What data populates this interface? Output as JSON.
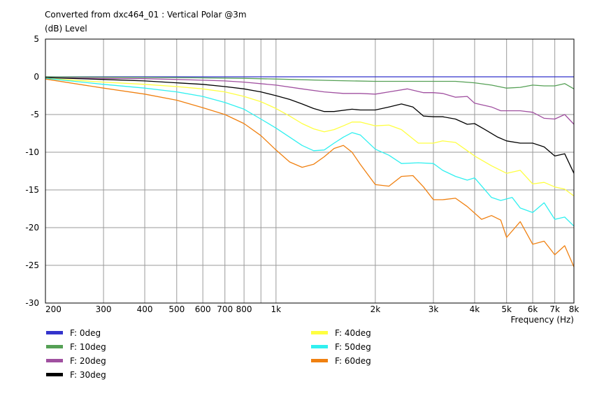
{
  "chart_data": {
    "type": "line",
    "title": "Converted from dxc464_01 : Vertical Polar @3m",
    "ylabel": "(dB)  Level",
    "xlabel": "Frequency  (Hz)",
    "x_scale": "log",
    "xlim": [
      200,
      8000
    ],
    "ylim": [
      -30,
      5
    ],
    "grid": true,
    "legend_position": "bottom",
    "x_ticks": [
      {
        "v": 200,
        "label": "200"
      },
      {
        "v": 300,
        "label": "300"
      },
      {
        "v": 400,
        "label": "400"
      },
      {
        "v": 500,
        "label": "500"
      },
      {
        "v": 600,
        "label": "600"
      },
      {
        "v": 700,
        "label": "700"
      },
      {
        "v": 800,
        "label": "800"
      },
      {
        "v": 1000,
        "label": "1k"
      },
      {
        "v": 2000,
        "label": "2k"
      },
      {
        "v": 3000,
        "label": "3k"
      },
      {
        "v": 4000,
        "label": "4k"
      },
      {
        "v": 5000,
        "label": "5k"
      },
      {
        "v": 6000,
        "label": "6k"
      },
      {
        "v": 7000,
        "label": "7k"
      },
      {
        "v": 8000,
        "label": "8k"
      }
    ],
    "x_minor": [
      900
    ],
    "y_ticks": [
      5,
      0,
      -5,
      -10,
      -15,
      -20,
      -25,
      -30
    ],
    "series": [
      {
        "name": "F: 0deg",
        "color": "#3333cc",
        "points": [
          [
            200,
            0
          ],
          [
            8000,
            0
          ]
        ]
      },
      {
        "name": "F: 10deg",
        "color": "#55a055",
        "points": [
          [
            200,
            0
          ],
          [
            300,
            -0.05
          ],
          [
            500,
            -0.1
          ],
          [
            800,
            -0.2
          ],
          [
            1000,
            -0.3
          ],
          [
            1500,
            -0.5
          ],
          [
            2000,
            -0.6
          ],
          [
            2500,
            -0.6
          ],
          [
            3000,
            -0.6
          ],
          [
            3500,
            -0.6
          ],
          [
            4000,
            -0.8
          ],
          [
            4500,
            -1.1
          ],
          [
            5000,
            -1.5
          ],
          [
            5500,
            -1.4
          ],
          [
            6000,
            -1.1
          ],
          [
            6500,
            -1.2
          ],
          [
            7000,
            -1.2
          ],
          [
            7500,
            -0.9
          ],
          [
            8000,
            -1.6
          ]
        ]
      },
      {
        "name": "F: 20deg",
        "color": "#a050a0",
        "points": [
          [
            200,
            -0.1
          ],
          [
            300,
            -0.2
          ],
          [
            400,
            -0.25
          ],
          [
            500,
            -0.35
          ],
          [
            600,
            -0.45
          ],
          [
            700,
            -0.55
          ],
          [
            800,
            -0.7
          ],
          [
            1000,
            -1.1
          ],
          [
            1200,
            -1.6
          ],
          [
            1400,
            -2.0
          ],
          [
            1600,
            -2.2
          ],
          [
            1800,
            -2.2
          ],
          [
            2000,
            -2.3
          ],
          [
            2200,
            -2.0
          ],
          [
            2500,
            -1.6
          ],
          [
            2800,
            -2.1
          ],
          [
            3000,
            -2.1
          ],
          [
            3200,
            -2.2
          ],
          [
            3500,
            -2.7
          ],
          [
            3800,
            -2.6
          ],
          [
            4000,
            -3.5
          ],
          [
            4500,
            -4.0
          ],
          [
            4800,
            -4.5
          ],
          [
            5500,
            -4.5
          ],
          [
            6000,
            -4.7
          ],
          [
            6500,
            -5.5
          ],
          [
            7000,
            -5.6
          ],
          [
            7500,
            -5.0
          ],
          [
            8000,
            -6.3
          ]
        ]
      },
      {
        "name": "F: 30deg",
        "color": "#000000",
        "points": [
          [
            200,
            -0.1
          ],
          [
            300,
            -0.35
          ],
          [
            400,
            -0.55
          ],
          [
            500,
            -0.8
          ],
          [
            600,
            -1.0
          ],
          [
            700,
            -1.3
          ],
          [
            800,
            -1.6
          ],
          [
            900,
            -2.0
          ],
          [
            1000,
            -2.5
          ],
          [
            1100,
            -3.0
          ],
          [
            1200,
            -3.6
          ],
          [
            1300,
            -4.2
          ],
          [
            1400,
            -4.6
          ],
          [
            1500,
            -4.6
          ],
          [
            1700,
            -4.3
          ],
          [
            1800,
            -4.4
          ],
          [
            2000,
            -4.4
          ],
          [
            2200,
            -4.0
          ],
          [
            2400,
            -3.6
          ],
          [
            2600,
            -4.0
          ],
          [
            2800,
            -5.2
          ],
          [
            3000,
            -5.3
          ],
          [
            3200,
            -5.3
          ],
          [
            3500,
            -5.6
          ],
          [
            3800,
            -6.3
          ],
          [
            4000,
            -6.2
          ],
          [
            4300,
            -7.0
          ],
          [
            4700,
            -8.0
          ],
          [
            5000,
            -8.5
          ],
          [
            5500,
            -8.8
          ],
          [
            6000,
            -8.8
          ],
          [
            6500,
            -9.3
          ],
          [
            7000,
            -10.5
          ],
          [
            7500,
            -10.2
          ],
          [
            8000,
            -12.8
          ]
        ]
      },
      {
        "name": "F: 40deg",
        "color": "#ffff40",
        "points": [
          [
            200,
            -0.2
          ],
          [
            300,
            -0.7
          ],
          [
            400,
            -1.0
          ],
          [
            500,
            -1.3
          ],
          [
            600,
            -1.6
          ],
          [
            700,
            -2.0
          ],
          [
            800,
            -2.6
          ],
          [
            900,
            -3.3
          ],
          [
            1000,
            -4.2
          ],
          [
            1100,
            -5.2
          ],
          [
            1200,
            -6.2
          ],
          [
            1300,
            -6.9
          ],
          [
            1400,
            -7.3
          ],
          [
            1500,
            -7.0
          ],
          [
            1600,
            -6.5
          ],
          [
            1700,
            -6.0
          ],
          [
            1800,
            -6.0
          ],
          [
            2000,
            -6.5
          ],
          [
            2200,
            -6.4
          ],
          [
            2400,
            -7.0
          ],
          [
            2700,
            -8.8
          ],
          [
            3000,
            -8.8
          ],
          [
            3200,
            -8.5
          ],
          [
            3500,
            -8.7
          ],
          [
            3800,
            -9.8
          ],
          [
            4000,
            -10.5
          ],
          [
            4500,
            -11.8
          ],
          [
            5000,
            -12.8
          ],
          [
            5500,
            -12.4
          ],
          [
            6000,
            -14.2
          ],
          [
            6500,
            -14.0
          ],
          [
            7000,
            -14.6
          ],
          [
            7500,
            -14.9
          ],
          [
            8000,
            -15.8
          ]
        ]
      },
      {
        "name": "F: 50deg",
        "color": "#30f0f0",
        "points": [
          [
            200,
            -0.2
          ],
          [
            300,
            -1.0
          ],
          [
            400,
            -1.5
          ],
          [
            500,
            -2.0
          ],
          [
            600,
            -2.6
          ],
          [
            700,
            -3.4
          ],
          [
            800,
            -4.3
          ],
          [
            900,
            -5.6
          ],
          [
            1000,
            -6.8
          ],
          [
            1100,
            -8.0
          ],
          [
            1200,
            -9.1
          ],
          [
            1300,
            -9.8
          ],
          [
            1400,
            -9.7
          ],
          [
            1500,
            -8.8
          ],
          [
            1600,
            -8.0
          ],
          [
            1700,
            -7.4
          ],
          [
            1800,
            -7.7
          ],
          [
            2000,
            -9.6
          ],
          [
            2200,
            -10.4
          ],
          [
            2400,
            -11.5
          ],
          [
            2700,
            -11.4
          ],
          [
            3000,
            -11.5
          ],
          [
            3200,
            -12.4
          ],
          [
            3500,
            -13.2
          ],
          [
            3800,
            -13.7
          ],
          [
            4000,
            -13.4
          ],
          [
            4500,
            -16.0
          ],
          [
            4800,
            -16.4
          ],
          [
            5200,
            -16.0
          ],
          [
            5500,
            -17.4
          ],
          [
            6000,
            -18.0
          ],
          [
            6500,
            -16.7
          ],
          [
            7000,
            -18.9
          ],
          [
            7500,
            -18.6
          ],
          [
            8000,
            -19.8
          ]
        ]
      },
      {
        "name": "F: 60deg",
        "color": "#f08010",
        "points": [
          [
            200,
            -0.3
          ],
          [
            300,
            -1.5
          ],
          [
            400,
            -2.3
          ],
          [
            500,
            -3.1
          ],
          [
            600,
            -4.1
          ],
          [
            700,
            -5.0
          ],
          [
            800,
            -6.2
          ],
          [
            900,
            -7.8
          ],
          [
            1000,
            -9.7
          ],
          [
            1100,
            -11.3
          ],
          [
            1200,
            -12.0
          ],
          [
            1300,
            -11.6
          ],
          [
            1400,
            -10.6
          ],
          [
            1500,
            -9.5
          ],
          [
            1600,
            -9.1
          ],
          [
            1700,
            -10.0
          ],
          [
            1800,
            -11.6
          ],
          [
            2000,
            -14.3
          ],
          [
            2200,
            -14.5
          ],
          [
            2400,
            -13.2
          ],
          [
            2600,
            -13.1
          ],
          [
            2800,
            -14.6
          ],
          [
            3000,
            -16.3
          ],
          [
            3200,
            -16.3
          ],
          [
            3500,
            -16.1
          ],
          [
            3800,
            -17.2
          ],
          [
            4200,
            -18.9
          ],
          [
            4500,
            -18.4
          ],
          [
            4800,
            -19.0
          ],
          [
            5000,
            -21.3
          ],
          [
            5500,
            -19.2
          ],
          [
            6000,
            -22.2
          ],
          [
            6500,
            -21.8
          ],
          [
            7000,
            -23.6
          ],
          [
            7500,
            -22.4
          ],
          [
            8000,
            -25.2
          ]
        ]
      }
    ]
  }
}
